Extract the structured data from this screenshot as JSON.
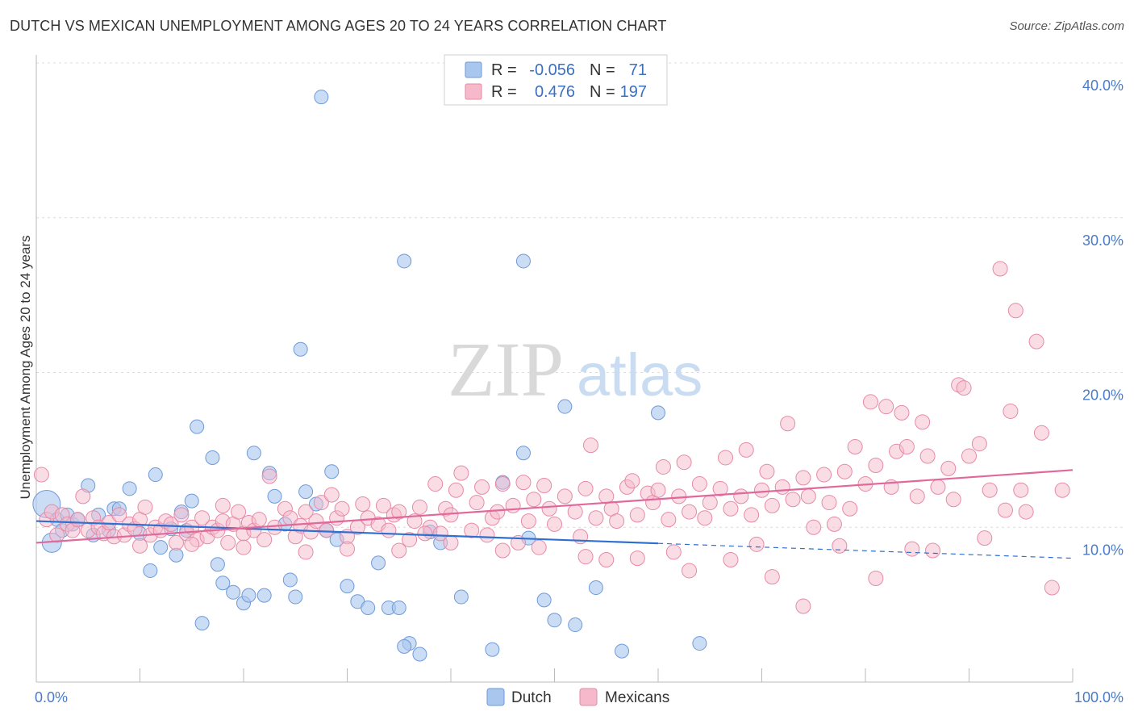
{
  "title": "DUTCH VS MEXICAN UNEMPLOYMENT AMONG AGES 20 TO 24 YEARS CORRELATION CHART",
  "source": "Source: ZipAtlas.com",
  "watermark": {
    "zip": "ZIP",
    "atlas": "atlas"
  },
  "colors": {
    "dutch_fill": "#a9c6ee",
    "dutch_stroke": "#6f9ad9",
    "dutch_line": "#2f6fd0",
    "mex_fill": "#f6b9cb",
    "mex_stroke": "#e68aa6",
    "mex_line": "#e0689a",
    "grid": "#dcdcdc",
    "tick_text": "#4a7bc8"
  },
  "legend": {
    "rows": [
      {
        "r_label": "R =",
        "r_value": "-0.056",
        "n_label": "N =",
        "n_value": "71"
      },
      {
        "r_label": "R =",
        "r_value": "0.476",
        "n_label": "N =",
        "n_value": "197"
      }
    ]
  },
  "chart_data": {
    "type": "scatter",
    "title": "DUTCH VS MEXICAN UNEMPLOYMENT AMONG AGES 20 TO 24 YEARS CORRELATION CHART",
    "xlabel": "",
    "ylabel": "Unemployment Among Ages 20 to 24 years",
    "xlim": [
      0,
      100
    ],
    "ylim": [
      0,
      40
    ],
    "x_tick_labels": [
      "0.0%",
      "100.0%"
    ],
    "y_ticks": [
      10,
      20,
      30,
      40
    ],
    "y_tick_labels": [
      "10.0%",
      "20.0%",
      "30.0%",
      "40.0%"
    ],
    "grid": true,
    "legend_position": "top-center",
    "series": [
      {
        "name": "Dutch",
        "r": -0.056,
        "n": 71,
        "trend": {
          "x0": 0,
          "y0": 10.4,
          "x1": 100,
          "y1": 8.0,
          "solid_until": 60
        },
        "points": [
          [
            1,
            11.5
          ],
          [
            1.5,
            9.0
          ],
          [
            2,
            10.5
          ],
          [
            2.5,
            9.8
          ],
          [
            3,
            10.8
          ],
          [
            3.5,
            10.2
          ],
          [
            4,
            10.5
          ],
          [
            5,
            12.7
          ],
          [
            5.5,
            9.5
          ],
          [
            6,
            10.8
          ],
          [
            7,
            9.8
          ],
          [
            7.5,
            11.2
          ],
          [
            8,
            11.2
          ],
          [
            9,
            12.5
          ],
          [
            10,
            9.6
          ],
          [
            11,
            7.2
          ],
          [
            11.5,
            13.4
          ],
          [
            12,
            8.7
          ],
          [
            13,
            9.9
          ],
          [
            13.5,
            8.2
          ],
          [
            14,
            11.0
          ],
          [
            14.5,
            9.8
          ],
          [
            15,
            11.7
          ],
          [
            15.5,
            16.5
          ],
          [
            16,
            3.8
          ],
          [
            17,
            14.5
          ],
          [
            17.5,
            7.6
          ],
          [
            18,
            6.4
          ],
          [
            19,
            5.8
          ],
          [
            20,
            5.1
          ],
          [
            20.5,
            5.6
          ],
          [
            21,
            14.8
          ],
          [
            22,
            5.6
          ],
          [
            22.5,
            13.5
          ],
          [
            23,
            12.0
          ],
          [
            24,
            10.2
          ],
          [
            24.5,
            6.6
          ],
          [
            25,
            5.5
          ],
          [
            26,
            12.3
          ],
          [
            27,
            11.5
          ],
          [
            28,
            9.8
          ],
          [
            28.5,
            13.6
          ],
          [
            29,
            9.2
          ],
          [
            30,
            6.2
          ],
          [
            31,
            5.2
          ],
          [
            32,
            4.8
          ],
          [
            33,
            7.7
          ],
          [
            34,
            4.8
          ],
          [
            35,
            4.8
          ],
          [
            36,
            2.5
          ],
          [
            37,
            1.8
          ],
          [
            38,
            9.7
          ],
          [
            27.5,
            37.8
          ],
          [
            25.5,
            21.5
          ],
          [
            35.5,
            2.3
          ],
          [
            39,
            9.0
          ],
          [
            41,
            5.5
          ],
          [
            44,
            2.1
          ],
          [
            45,
            12.9
          ],
          [
            47,
            14.8
          ],
          [
            47.5,
            9.3
          ],
          [
            49,
            5.3
          ],
          [
            50,
            4.0
          ],
          [
            51,
            17.8
          ],
          [
            52,
            3.7
          ],
          [
            54,
            6.1
          ],
          [
            56.5,
            2.0
          ],
          [
            35.5,
            27.2
          ],
          [
            47,
            27.2
          ],
          [
            60,
            17.4
          ],
          [
            64,
            2.5
          ]
        ]
      },
      {
        "name": "Mexicans",
        "r": 0.476,
        "n": 197,
        "trend": {
          "x0": 0,
          "y0": 9.0,
          "x1": 100,
          "y1": 13.7
        },
        "points": [
          [
            0.5,
            13.4
          ],
          [
            1,
            10.5
          ],
          [
            1.5,
            11.0
          ],
          [
            2,
            9.5
          ],
          [
            2.5,
            10.8
          ],
          [
            3,
            10.2
          ],
          [
            3.5,
            9.8
          ],
          [
            4,
            10.5
          ],
          [
            4.5,
            12.0
          ],
          [
            5,
            9.8
          ],
          [
            5.5,
            10.6
          ],
          [
            6,
            10.0
          ],
          [
            6.5,
            9.6
          ],
          [
            7,
            10.3
          ],
          [
            7.5,
            9.4
          ],
          [
            8,
            10.8
          ],
          [
            8.5,
            9.5
          ],
          [
            9,
            10.2
          ],
          [
            9.5,
            9.9
          ],
          [
            10,
            10.5
          ],
          [
            10.5,
            11.3
          ],
          [
            11,
            9.5
          ],
          [
            11.5,
            10.0
          ],
          [
            12,
            9.8
          ],
          [
            12.5,
            10.4
          ],
          [
            13,
            10.2
          ],
          [
            13.5,
            9.0
          ],
          [
            14,
            10.8
          ],
          [
            14.5,
            9.6
          ],
          [
            15,
            10.0
          ],
          [
            15.5,
            9.2
          ],
          [
            16,
            10.6
          ],
          [
            16.5,
            9.4
          ],
          [
            17,
            10.0
          ],
          [
            17.5,
            9.8
          ],
          [
            18,
            10.4
          ],
          [
            18.5,
            9.0
          ],
          [
            19,
            10.2
          ],
          [
            19.5,
            11.0
          ],
          [
            20,
            9.6
          ],
          [
            20.5,
            10.3
          ],
          [
            21,
            9.8
          ],
          [
            21.5,
            10.5
          ],
          [
            22,
            9.2
          ],
          [
            22.5,
            13.3
          ],
          [
            23,
            10.0
          ],
          [
            24,
            11.2
          ],
          [
            24.5,
            10.6
          ],
          [
            25,
            9.4
          ],
          [
            25.5,
            10.1
          ],
          [
            26,
            11.0
          ],
          [
            26.5,
            9.7
          ],
          [
            27,
            10.4
          ],
          [
            27.5,
            11.6
          ],
          [
            28,
            9.8
          ],
          [
            29,
            10.6
          ],
          [
            29.5,
            11.2
          ],
          [
            30,
            9.4
          ],
          [
            31,
            10.0
          ],
          [
            31.5,
            11.5
          ],
          [
            32,
            10.6
          ],
          [
            33,
            10.2
          ],
          [
            33.5,
            11.4
          ],
          [
            34,
            9.8
          ],
          [
            34.5,
            10.8
          ],
          [
            35,
            11.0
          ],
          [
            36,
            9.2
          ],
          [
            36.5,
            10.4
          ],
          [
            37,
            11.3
          ],
          [
            38,
            10.0
          ],
          [
            38.5,
            12.8
          ],
          [
            39,
            9.6
          ],
          [
            39.5,
            11.2
          ],
          [
            40,
            10.8
          ],
          [
            40.5,
            12.4
          ],
          [
            41,
            13.5
          ],
          [
            42,
            9.8
          ],
          [
            42.5,
            11.6
          ],
          [
            43,
            12.6
          ],
          [
            44,
            10.6
          ],
          [
            44.5,
            11.0
          ],
          [
            45,
            12.8
          ],
          [
            46,
            11.4
          ],
          [
            46.5,
            9.0
          ],
          [
            47,
            12.9
          ],
          [
            47.5,
            10.4
          ],
          [
            48,
            11.8
          ],
          [
            49,
            12.7
          ],
          [
            49.5,
            11.2
          ],
          [
            50,
            10.2
          ],
          [
            51,
            12.0
          ],
          [
            52,
            11.0
          ],
          [
            53,
            12.5
          ],
          [
            53.5,
            15.3
          ],
          [
            54,
            10.6
          ],
          [
            55,
            12.0
          ],
          [
            55.5,
            11.2
          ],
          [
            56,
            10.4
          ],
          [
            57,
            12.6
          ],
          [
            57.5,
            13.0
          ],
          [
            58,
            10.8
          ],
          [
            59,
            12.2
          ],
          [
            59.5,
            11.6
          ],
          [
            60,
            12.4
          ],
          [
            60.5,
            13.9
          ],
          [
            61,
            10.5
          ],
          [
            62,
            12.0
          ],
          [
            62.5,
            14.2
          ],
          [
            63,
            11.0
          ],
          [
            64,
            12.8
          ],
          [
            64.5,
            10.6
          ],
          [
            65,
            11.6
          ],
          [
            66,
            12.5
          ],
          [
            66.5,
            14.5
          ],
          [
            67,
            11.2
          ],
          [
            68,
            12.0
          ],
          [
            68.5,
            15.0
          ],
          [
            69,
            10.8
          ],
          [
            70,
            12.4
          ],
          [
            70.5,
            13.6
          ],
          [
            71,
            11.4
          ],
          [
            72,
            12.6
          ],
          [
            72.5,
            16.7
          ],
          [
            73,
            11.8
          ],
          [
            74,
            13.2
          ],
          [
            74.5,
            12.0
          ],
          [
            75,
            10.0
          ],
          [
            76,
            13.4
          ],
          [
            76.5,
            11.6
          ],
          [
            77,
            10.2
          ],
          [
            78,
            13.6
          ],
          [
            78.5,
            11.2
          ],
          [
            79,
            15.2
          ],
          [
            80,
            12.8
          ],
          [
            80.5,
            18.1
          ],
          [
            81,
            14.0
          ],
          [
            82,
            17.8
          ],
          [
            82.5,
            12.6
          ],
          [
            83,
            14.9
          ],
          [
            83.5,
            17.4
          ],
          [
            84,
            15.2
          ],
          [
            85,
            12.0
          ],
          [
            85.5,
            16.8
          ],
          [
            86,
            14.6
          ],
          [
            87,
            12.6
          ],
          [
            88,
            13.8
          ],
          [
            88.5,
            11.8
          ],
          [
            89,
            19.2
          ],
          [
            89.5,
            19.0
          ],
          [
            90,
            14.6
          ],
          [
            91,
            15.4
          ],
          [
            92,
            12.4
          ],
          [
            93,
            26.7
          ],
          [
            94,
            17.5
          ],
          [
            95,
            12.4
          ],
          [
            95.5,
            11.0
          ],
          [
            94.5,
            24.0
          ],
          [
            96.5,
            22.0
          ],
          [
            97,
            16.1
          ],
          [
            98,
            6.1
          ],
          [
            99,
            12.4
          ],
          [
            81,
            6.7
          ],
          [
            84.5,
            8.6
          ],
          [
            74,
            4.9
          ],
          [
            71,
            6.8
          ],
          [
            67,
            7.9
          ],
          [
            63,
            7.2
          ],
          [
            58,
            8.0
          ],
          [
            53,
            8.1
          ],
          [
            45,
            8.5
          ],
          [
            40,
            9.0
          ],
          [
            35,
            8.5
          ],
          [
            30,
            8.6
          ],
          [
            26,
            8.4
          ],
          [
            20,
            8.7
          ],
          [
            15,
            8.9
          ],
          [
            10,
            8.8
          ],
          [
            18,
            11.4
          ],
          [
            28.5,
            12.1
          ],
          [
            37.5,
            9.6
          ],
          [
            43.5,
            9.5
          ],
          [
            48.5,
            8.7
          ],
          [
            52.5,
            9.4
          ],
          [
            55,
            7.9
          ],
          [
            61.5,
            8.4
          ],
          [
            69.5,
            8.9
          ],
          [
            77.5,
            8.8
          ],
          [
            86.5,
            8.5
          ],
          [
            91.5,
            9.3
          ],
          [
            93.5,
            11.1
          ]
        ]
      }
    ]
  },
  "bottom_legend": {
    "items": [
      "Dutch",
      "Mexicans"
    ]
  }
}
